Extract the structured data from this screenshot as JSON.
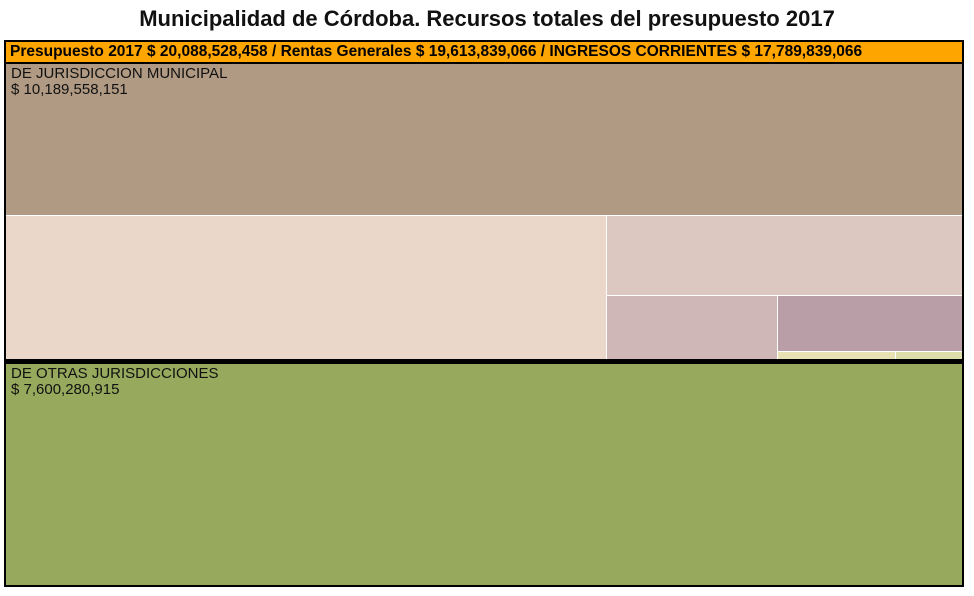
{
  "title": "Municipalidad de Córdoba. Recursos totales del presupuesto 2017",
  "header": "Presupuesto 2017 $ 20,088,528,458 / Rentas Generales $ 19,613,839,066 / INGRESOS CORRIENTES $ 17,789,839,066",
  "chart_data": {
    "type": "treemap",
    "title": "Municipalidad de Córdoba. Recursos totales del presupuesto 2017",
    "root": {
      "label": "Presupuesto 2017",
      "value": 20088528458
    },
    "path": [
      {
        "label": "Rentas Generales",
        "value": 19613839066
      },
      {
        "label": "INGRESOS CORRIENTES",
        "value": 17789839066
      }
    ],
    "groups": [
      {
        "name": "DE JURISDICCION MUNICIPAL",
        "value_label": "$ 10,189,558,151",
        "value": 10189558151,
        "color": "#ffffff",
        "children": [
          {
            "color": "#b09a83"
          },
          {
            "color": "#ead7c9"
          },
          {
            "color": "#ddc8c1"
          },
          {
            "color": "#cfb7b7"
          },
          {
            "color": "#b99ea7"
          },
          {
            "color": "#e7e1b3"
          },
          {
            "color": "#ddddaa"
          }
        ]
      },
      {
        "name": "DE OTRAS JURISDICCIONES",
        "value_label": "$ 7,600,280,915",
        "value": 7600280915,
        "color": "#97a95d",
        "children": [
          {
            "color": "#97a95d"
          }
        ]
      }
    ]
  }
}
